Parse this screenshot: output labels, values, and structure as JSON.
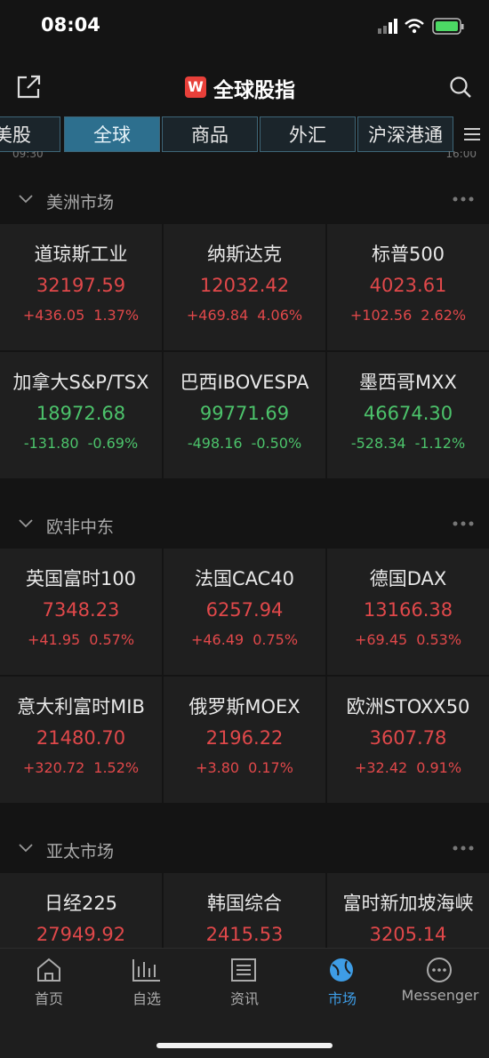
{
  "status_bar": {
    "time": "08:04"
  },
  "header": {
    "logo": "W",
    "title": "全球股指"
  },
  "tabs": [
    "美股",
    "全球",
    "商品",
    "外汇",
    "沪深港通"
  ],
  "active_tab": 1,
  "time_hints": [
    "09:30",
    "16:00"
  ],
  "sections": [
    {
      "title": "美洲市场",
      "items": [
        {
          "name": "道琼斯工业",
          "price": "32197.59",
          "change": "+436.05",
          "pct": "1.37%"
        },
        {
          "name": "纳斯达克",
          "price": "12032.42",
          "change": "+469.84",
          "pct": "4.06%"
        },
        {
          "name": "标普500",
          "price": "4023.61",
          "change": "+102.56",
          "pct": "2.62%"
        },
        {
          "name": "加拿大S&P/TSX",
          "price": "18972.68",
          "change": "-131.80",
          "pct": "-0.69%"
        },
        {
          "name": "巴西IBOVESPA",
          "price": "99771.69",
          "change": "-498.16",
          "pct": "-0.50%"
        },
        {
          "name": "墨西哥MXX",
          "price": "46674.30",
          "change": "-528.34",
          "pct": "-1.12%"
        }
      ]
    },
    {
      "title": "欧非中东",
      "items": [
        {
          "name": "英国富时100",
          "price": "7348.23",
          "change": "+41.95",
          "pct": "0.57%"
        },
        {
          "name": "法国CAC40",
          "price": "6257.94",
          "change": "+46.49",
          "pct": "0.75%"
        },
        {
          "name": "德国DAX",
          "price": "13166.38",
          "change": "+69.45",
          "pct": "0.53%"
        },
        {
          "name": "意大利富时MIB",
          "price": "21480.70",
          "change": "+320.72",
          "pct": "1.52%"
        },
        {
          "name": "俄罗斯MOEX",
          "price": "2196.22",
          "change": "+3.80",
          "pct": "0.17%"
        },
        {
          "name": "欧洲STOXX50",
          "price": "3607.78",
          "change": "+32.42",
          "pct": "0.91%"
        }
      ]
    },
    {
      "title": "亚太市场",
      "items": [
        {
          "name": "日经225",
          "price": "27949.92"
        },
        {
          "name": "韩国综合",
          "price": "2415.53"
        },
        {
          "name": "富时新加坡海峡",
          "price": "3205.14"
        }
      ]
    }
  ],
  "nav": [
    "首页",
    "自选",
    "资讯",
    "市场",
    "Messenger"
  ],
  "active_nav": 3
}
